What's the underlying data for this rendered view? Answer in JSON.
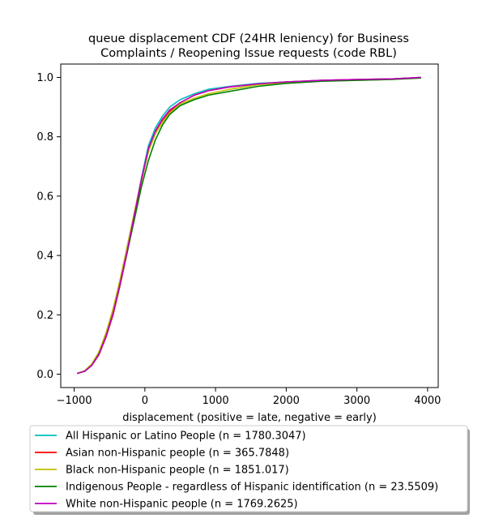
{
  "chart_data": {
    "type": "line",
    "title_lines": [
      "queue displacement CDF (24HR leniency) for Business",
      "Complaints / Reopening Issue  requests (code RBL)"
    ],
    "xlabel": "displacement (positive = late, negative = early)",
    "ylabel": "",
    "xlim": [
      -1190,
      4150
    ],
    "ylim": [
      -0.045,
      1.045
    ],
    "xticks": [
      -1000,
      0,
      1000,
      2000,
      3000,
      4000
    ],
    "yticks": [
      0.0,
      0.2,
      0.4,
      0.6,
      0.8,
      1.0
    ],
    "xtick_labels": [
      "−1000",
      "0",
      "1000",
      "2000",
      "3000",
      "4000"
    ],
    "ytick_labels": [
      "0.0",
      "0.2",
      "0.4",
      "0.6",
      "0.8",
      "1.0"
    ],
    "grid": false,
    "legend_position": "below-plot",
    "series": [
      {
        "name": "All Hispanic or Latino People (n = 1780.3047)",
        "color": "#00bfbf",
        "points": [
          [
            -950,
            0.003
          ],
          [
            -850,
            0.01
          ],
          [
            -750,
            0.03
          ],
          [
            -650,
            0.07
          ],
          [
            -550,
            0.13
          ],
          [
            -450,
            0.21
          ],
          [
            -350,
            0.31
          ],
          [
            -250,
            0.42
          ],
          [
            -150,
            0.54
          ],
          [
            -50,
            0.66
          ],
          [
            50,
            0.77
          ],
          [
            150,
            0.83
          ],
          [
            250,
            0.87
          ],
          [
            350,
            0.9
          ],
          [
            500,
            0.925
          ],
          [
            700,
            0.945
          ],
          [
            900,
            0.96
          ],
          [
            1200,
            0.97
          ],
          [
            1600,
            0.98
          ],
          [
            2000,
            0.985
          ],
          [
            2500,
            0.99
          ],
          [
            3000,
            0.993
          ],
          [
            3500,
            0.995
          ],
          [
            3900,
            1.0
          ]
        ]
      },
      {
        "name": "Asian non-Hispanic people (n = 365.7848)",
        "color": "#ff0000",
        "points": [
          [
            -950,
            0.003
          ],
          [
            -850,
            0.01
          ],
          [
            -750,
            0.03
          ],
          [
            -650,
            0.065
          ],
          [
            -550,
            0.125
          ],
          [
            -450,
            0.2
          ],
          [
            -350,
            0.3
          ],
          [
            -250,
            0.41
          ],
          [
            -150,
            0.53
          ],
          [
            -50,
            0.65
          ],
          [
            50,
            0.75
          ],
          [
            150,
            0.815
          ],
          [
            250,
            0.855
          ],
          [
            350,
            0.885
          ],
          [
            500,
            0.915
          ],
          [
            700,
            0.94
          ],
          [
            900,
            0.955
          ],
          [
            1200,
            0.968
          ],
          [
            1600,
            0.978
          ],
          [
            2000,
            0.985
          ],
          [
            2500,
            0.99
          ],
          [
            3000,
            0.993
          ],
          [
            3500,
            0.995
          ],
          [
            3900,
            1.0
          ]
        ]
      },
      {
        "name": "Black non-Hispanic people (n = 1851.017)",
        "color": "#bfbf00",
        "points": [
          [
            -950,
            0.003
          ],
          [
            -850,
            0.012
          ],
          [
            -750,
            0.035
          ],
          [
            -650,
            0.075
          ],
          [
            -550,
            0.14
          ],
          [
            -450,
            0.22
          ],
          [
            -350,
            0.32
          ],
          [
            -250,
            0.43
          ],
          [
            -150,
            0.545
          ],
          [
            -50,
            0.655
          ],
          [
            50,
            0.75
          ],
          [
            150,
            0.81
          ],
          [
            250,
            0.85
          ],
          [
            350,
            0.88
          ],
          [
            500,
            0.91
          ],
          [
            700,
            0.93
          ],
          [
            900,
            0.945
          ],
          [
            1200,
            0.96
          ],
          [
            1600,
            0.975
          ],
          [
            2000,
            0.983
          ],
          [
            2500,
            0.988
          ],
          [
            3000,
            0.99
          ],
          [
            3500,
            0.993
          ],
          [
            3900,
            0.998
          ]
        ]
      },
      {
        "name": "Indigenous People - regardless of Hispanic identification (n = 23.5509)",
        "color": "#008000",
        "points": [
          [
            -950,
            0.003
          ],
          [
            -850,
            0.01
          ],
          [
            -750,
            0.03
          ],
          [
            -650,
            0.068
          ],
          [
            -550,
            0.128
          ],
          [
            -450,
            0.205
          ],
          [
            -350,
            0.305
          ],
          [
            -250,
            0.41
          ],
          [
            -150,
            0.52
          ],
          [
            -50,
            0.63
          ],
          [
            50,
            0.72
          ],
          [
            150,
            0.79
          ],
          [
            250,
            0.84
          ],
          [
            350,
            0.875
          ],
          [
            500,
            0.905
          ],
          [
            700,
            0.925
          ],
          [
            900,
            0.94
          ],
          [
            1200,
            0.953
          ],
          [
            1600,
            0.97
          ],
          [
            2000,
            0.98
          ],
          [
            2500,
            0.987
          ],
          [
            3000,
            0.99
          ],
          [
            3500,
            0.993
          ],
          [
            3900,
            0.998
          ]
        ]
      },
      {
        "name": "White non-Hispanic people (n = 1769.2625)",
        "color": "#bf00bf",
        "points": [
          [
            -950,
            0.003
          ],
          [
            -850,
            0.01
          ],
          [
            -750,
            0.03
          ],
          [
            -650,
            0.067
          ],
          [
            -550,
            0.127
          ],
          [
            -450,
            0.205
          ],
          [
            -350,
            0.305
          ],
          [
            -250,
            0.415
          ],
          [
            -150,
            0.535
          ],
          [
            -50,
            0.655
          ],
          [
            50,
            0.76
          ],
          [
            150,
            0.82
          ],
          [
            250,
            0.86
          ],
          [
            350,
            0.89
          ],
          [
            500,
            0.915
          ],
          [
            700,
            0.94
          ],
          [
            900,
            0.955
          ],
          [
            1200,
            0.968
          ],
          [
            1600,
            0.978
          ],
          [
            2000,
            0.985
          ],
          [
            2500,
            0.99
          ],
          [
            3000,
            0.993
          ],
          [
            3500,
            0.995
          ],
          [
            3900,
            1.0
          ]
        ]
      }
    ]
  }
}
